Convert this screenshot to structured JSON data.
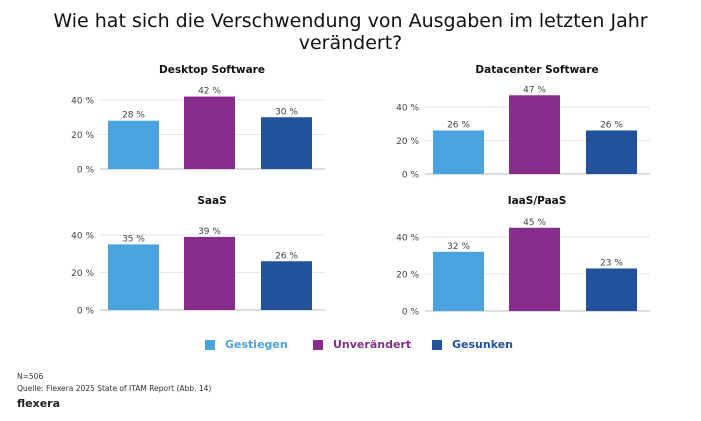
{
  "title": "Wie hat sich die Verschwendung von Ausgaben im letzten Jahr verändert?",
  "colors": {
    "Gestiegen": "#4aa3df",
    "Unverändert": "#862d8b",
    "Gesunken": "#22529c"
  },
  "chart_data": [
    {
      "type": "bar",
      "title": "Desktop Software",
      "categories": [
        "Gestiegen",
        "Unverändert",
        "Gesunken"
      ],
      "values": [
        28,
        42,
        30
      ],
      "labels": [
        "28 %",
        "42 %",
        "30 %"
      ],
      "yticks": [
        "0 %",
        "20 %",
        "40 %"
      ],
      "grid": true
    },
    {
      "type": "bar",
      "title": "Datacenter Software",
      "categories": [
        "Gestiegen",
        "Unverändert",
        "Gesunken"
      ],
      "values": [
        26,
        47,
        26
      ],
      "labels": [
        "26 %",
        "47 %",
        "26 %"
      ],
      "yticks": [
        "0 %",
        "20 %",
        "40 %"
      ],
      "grid": true
    },
    {
      "type": "bar",
      "title": "SaaS",
      "categories": [
        "Gestiegen",
        "Unverändert",
        "Gesunken"
      ],
      "values": [
        35,
        39,
        26
      ],
      "labels": [
        "35 %",
        "39 %",
        "26 %"
      ],
      "yticks": [
        "0 %",
        "20 %",
        "40 %"
      ],
      "grid": true
    },
    {
      "type": "bar",
      "title": "IaaS/PaaS",
      "categories": [
        "Gestiegen",
        "Unverändert",
        "Gesunken"
      ],
      "values": [
        32,
        45,
        23
      ],
      "labels": [
        "32 %",
        "45 %",
        "23 %"
      ],
      "yticks": [
        "0 %",
        "20 %",
        "40 %"
      ],
      "grid": true
    }
  ],
  "legend": [
    "Gestiegen",
    "Unverändert",
    "Gesunken"
  ],
  "footer": {
    "n": "N=506",
    "source": "Quelle: Flexera 2025 State of ITAM Report (Abb. 14)",
    "logo": "flexera"
  }
}
